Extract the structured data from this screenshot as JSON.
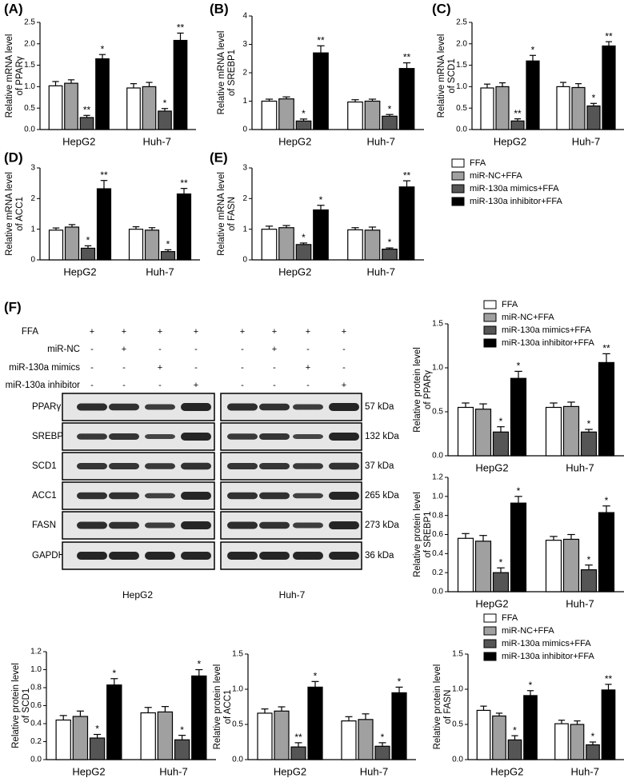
{
  "chart_data": [
    {
      "type": "bar",
      "panel": "(A)",
      "ylabel": [
        "Relative mRNA level",
        "of PPARγ"
      ],
      "categories": [
        "HepG2",
        "Huh-7"
      ],
      "ylim": [
        0,
        2.5
      ],
      "yticks": [
        {
          "value": 0,
          "label": "0.0"
        },
        0.5,
        {
          "value": 1,
          "label": "1.0"
        },
        1.5,
        {
          "value": 2,
          "label": "2.0"
        },
        2.5
      ],
      "series": [
        {
          "name": "FFA",
          "color": "#ffffff",
          "values": [
            1.02,
            0.97
          ],
          "errors": [
            0.1,
            0.1
          ],
          "annotations": [
            null,
            null
          ]
        },
        {
          "name": "miR-NC+FFA",
          "color": "#a0a0a0",
          "values": [
            1.08,
            1.0
          ],
          "errors": [
            0.08,
            0.1
          ],
          "annotations": [
            null,
            null
          ]
        },
        {
          "name": "miR-130a mimics+FFA",
          "color": "#555555",
          "values": [
            0.28,
            0.43
          ],
          "errors": [
            0.05,
            0.06
          ],
          "annotations": [
            "**",
            "*"
          ]
        },
        {
          "name": "miR-130a inhibitor+FFA",
          "color": "#000000",
          "values": [
            1.65,
            2.08
          ],
          "errors": [
            0.1,
            0.17
          ],
          "annotations": [
            "*",
            "**"
          ]
        }
      ]
    },
    {
      "type": "bar",
      "panel": "(B)",
      "ylabel": [
        "Relative mRNA level",
        "of SREBP1"
      ],
      "categories": [
        "HepG2",
        "Huh-7"
      ],
      "ylim": [
        0,
        4
      ],
      "yticks": [
        0,
        1,
        2,
        3,
        4
      ],
      "series": [
        {
          "name": "FFA",
          "color": "#ffffff",
          "values": [
            1.0,
            0.97
          ],
          "errors": [
            0.07,
            0.08
          ],
          "annotations": [
            null,
            null
          ]
        },
        {
          "name": "miR-NC+FFA",
          "color": "#a0a0a0",
          "values": [
            1.08,
            1.0
          ],
          "errors": [
            0.07,
            0.07
          ],
          "annotations": [
            null,
            null
          ]
        },
        {
          "name": "miR-130a mimics+FFA",
          "color": "#555555",
          "values": [
            0.3,
            0.47
          ],
          "errors": [
            0.07,
            0.06
          ],
          "annotations": [
            "*",
            "*"
          ]
        },
        {
          "name": "miR-130a inhibitor+FFA",
          "color": "#000000",
          "values": [
            2.7,
            2.15
          ],
          "errors": [
            0.25,
            0.2
          ],
          "annotations": [
            "**",
            "**"
          ]
        }
      ]
    },
    {
      "type": "bar",
      "panel": "(C)",
      "ylabel": [
        "Relative mRNA level",
        "of SCD1"
      ],
      "categories": [
        "HepG2",
        "Huh-7"
      ],
      "ylim": [
        0,
        2.5
      ],
      "yticks": [
        {
          "value": 0,
          "label": "0.0"
        },
        0.5,
        {
          "value": 1,
          "label": "1.0"
        },
        1.5,
        {
          "value": 2,
          "label": "2.0"
        },
        2.5
      ],
      "series": [
        {
          "name": "FFA",
          "color": "#ffffff",
          "values": [
            0.97,
            1.0
          ],
          "errors": [
            0.09,
            0.1
          ],
          "annotations": [
            null,
            null
          ]
        },
        {
          "name": "miR-NC+FFA",
          "color": "#a0a0a0",
          "values": [
            1.0,
            0.98
          ],
          "errors": [
            0.09,
            0.09
          ],
          "annotations": [
            null,
            null
          ]
        },
        {
          "name": "miR-130a mimics+FFA",
          "color": "#555555",
          "values": [
            0.2,
            0.55
          ],
          "errors": [
            0.05,
            0.06
          ],
          "annotations": [
            "**",
            "*"
          ]
        },
        {
          "name": "miR-130a inhibitor+FFA",
          "color": "#000000",
          "values": [
            1.6,
            1.95
          ],
          "errors": [
            0.13,
            0.1
          ],
          "annotations": [
            "*",
            "**"
          ]
        }
      ]
    },
    {
      "type": "bar",
      "panel": "(D)",
      "ylabel": [
        "Relative mRNA level",
        "of ACC1"
      ],
      "categories": [
        "HepG2",
        "Huh-7"
      ],
      "ylim": [
        0,
        3
      ],
      "yticks": [
        0,
        1,
        2,
        3
      ],
      "series": [
        {
          "name": "FFA",
          "color": "#ffffff",
          "values": [
            0.97,
            1.0
          ],
          "errors": [
            0.07,
            0.08
          ],
          "annotations": [
            null,
            null
          ]
        },
        {
          "name": "miR-NC+FFA",
          "color": "#a0a0a0",
          "values": [
            1.07,
            0.97
          ],
          "errors": [
            0.08,
            0.08
          ],
          "annotations": [
            null,
            null
          ]
        },
        {
          "name": "miR-130a mimics+FFA",
          "color": "#555555",
          "values": [
            0.38,
            0.27
          ],
          "errors": [
            0.08,
            0.06
          ],
          "annotations": [
            "*",
            "*"
          ]
        },
        {
          "name": "miR-130a inhibitor+FFA",
          "color": "#000000",
          "values": [
            2.32,
            2.15
          ],
          "errors": [
            0.27,
            0.18
          ],
          "annotations": [
            "**",
            "**"
          ]
        }
      ]
    },
    {
      "type": "bar",
      "panel": "(E)",
      "ylabel": [
        "Relative mRNA level",
        "of FASN"
      ],
      "categories": [
        "HepG2",
        "Huh-7"
      ],
      "ylim": [
        0,
        3
      ],
      "yticks": [
        0,
        1,
        2,
        3
      ],
      "legend": "right",
      "series": [
        {
          "name": "FFA",
          "color": "#ffffff",
          "values": [
            1.0,
            0.98
          ],
          "errors": [
            0.1,
            0.07
          ],
          "annotations": [
            null,
            null
          ]
        },
        {
          "name": "miR-NC+FFA",
          "color": "#a0a0a0",
          "values": [
            1.05,
            0.97
          ],
          "errors": [
            0.07,
            0.1
          ],
          "annotations": [
            null,
            null
          ]
        },
        {
          "name": "miR-130a mimics+FFA",
          "color": "#555555",
          "values": [
            0.5,
            0.35
          ],
          "errors": [
            0.05,
            0.04
          ],
          "annotations": [
            "*",
            "*"
          ]
        },
        {
          "name": "miR-130a inhibitor+FFA",
          "color": "#000000",
          "values": [
            1.63,
            2.38
          ],
          "errors": [
            0.15,
            0.2
          ],
          "annotations": [
            "*",
            "**"
          ]
        }
      ]
    },
    {
      "type": "bar",
      "ylabel": [
        "Relative protein level",
        "of PPARγ"
      ],
      "categories": [
        "HepG2",
        "Huh-7"
      ],
      "ylim": [
        0,
        1.5
      ],
      "yticks": [
        {
          "value": 0,
          "label": "0.0"
        },
        0.5,
        {
          "value": 1,
          "label": "1.0"
        },
        1.5
      ],
      "legend": "top",
      "series": [
        {
          "name": "FFA",
          "color": "#ffffff",
          "values": [
            0.55,
            0.55
          ],
          "errors": [
            0.05,
            0.05
          ],
          "annotations": [
            null,
            null
          ]
        },
        {
          "name": "miR-NC+FFA",
          "color": "#a0a0a0",
          "values": [
            0.53,
            0.56
          ],
          "errors": [
            0.06,
            0.05
          ],
          "annotations": [
            null,
            null
          ]
        },
        {
          "name": "miR-130a mimics+FFA",
          "color": "#555555",
          "values": [
            0.27,
            0.27
          ],
          "errors": [
            0.06,
            0.03
          ],
          "annotations": [
            "*",
            "*"
          ]
        },
        {
          "name": "miR-130a inhibitor+FFA",
          "color": "#000000",
          "values": [
            0.88,
            1.06
          ],
          "errors": [
            0.08,
            0.1
          ],
          "annotations": [
            "*",
            "**"
          ]
        }
      ]
    },
    {
      "type": "bar",
      "ylabel": [
        "Relative protein level",
        "of SREBP1"
      ],
      "categories": [
        "HepG2",
        "Huh-7"
      ],
      "ylim": [
        0,
        1.2
      ],
      "yticks": [
        {
          "value": 0,
          "label": "0.0"
        },
        0.2,
        0.4,
        0.6,
        0.8,
        {
          "value": 1,
          "label": "1.0"
        },
        1.2
      ],
      "series": [
        {
          "name": "FFA",
          "color": "#ffffff",
          "values": [
            0.56,
            0.54
          ],
          "errors": [
            0.05,
            0.04
          ],
          "annotations": [
            null,
            null
          ]
        },
        {
          "name": "miR-NC+FFA",
          "color": "#a0a0a0",
          "values": [
            0.53,
            0.55
          ],
          "errors": [
            0.06,
            0.05
          ],
          "annotations": [
            null,
            null
          ]
        },
        {
          "name": "miR-130a mimics+FFA",
          "color": "#555555",
          "values": [
            0.2,
            0.23
          ],
          "errors": [
            0.05,
            0.05
          ],
          "annotations": [
            "*",
            "*"
          ]
        },
        {
          "name": "miR-130a inhibitor+FFA",
          "color": "#000000",
          "values": [
            0.93,
            0.83
          ],
          "errors": [
            0.07,
            0.07
          ],
          "annotations": [
            "*",
            "*"
          ]
        }
      ]
    },
    {
      "type": "bar",
      "ylabel": [
        "Relative protein level",
        "of SCD1"
      ],
      "categories": [
        "HepG2",
        "Huh-7"
      ],
      "ylim": [
        0,
        1.2
      ],
      "yticks": [
        {
          "value": 0,
          "label": "0.0"
        },
        0.2,
        0.4,
        0.6,
        0.8,
        {
          "value": 1,
          "label": "1.0"
        },
        1.2
      ],
      "series": [
        {
          "name": "FFA",
          "color": "#ffffff",
          "values": [
            0.44,
            0.52
          ],
          "errors": [
            0.05,
            0.06
          ],
          "annotations": [
            null,
            null
          ]
        },
        {
          "name": "miR-NC+FFA",
          "color": "#a0a0a0",
          "values": [
            0.48,
            0.53
          ],
          "errors": [
            0.06,
            0.06
          ],
          "annotations": [
            null,
            null
          ]
        },
        {
          "name": "miR-130a mimics+FFA",
          "color": "#555555",
          "values": [
            0.24,
            0.22
          ],
          "errors": [
            0.04,
            0.05
          ],
          "annotations": [
            "*",
            "*"
          ]
        },
        {
          "name": "miR-130a inhibitor+FFA",
          "color": "#000000",
          "values": [
            0.83,
            0.93
          ],
          "errors": [
            0.07,
            0.07
          ],
          "annotations": [
            "*",
            "*"
          ]
        }
      ]
    },
    {
      "type": "bar",
      "ylabel": [
        "Relative protein level",
        "of ACC1"
      ],
      "categories": [
        "HepG2",
        "Huh-7"
      ],
      "ylim": [
        0,
        1.5
      ],
      "yticks": [
        {
          "value": 0,
          "label": "0.0"
        },
        0.5,
        {
          "value": 1,
          "label": "1.0"
        },
        1.5
      ],
      "series": [
        {
          "name": "FFA",
          "color": "#ffffff",
          "values": [
            0.66,
            0.55
          ],
          "errors": [
            0.06,
            0.06
          ],
          "annotations": [
            null,
            null
          ]
        },
        {
          "name": "miR-NC+FFA",
          "color": "#a0a0a0",
          "values": [
            0.69,
            0.57
          ],
          "errors": [
            0.06,
            0.08
          ],
          "annotations": [
            null,
            null
          ]
        },
        {
          "name": "miR-130a mimics+FFA",
          "color": "#555555",
          "values": [
            0.18,
            0.19
          ],
          "errors": [
            0.06,
            0.05
          ],
          "annotations": [
            "**",
            "*"
          ]
        },
        {
          "name": "miR-130a inhibitor+FFA",
          "color": "#000000",
          "values": [
            1.03,
            0.95
          ],
          "errors": [
            0.08,
            0.08
          ],
          "annotations": [
            "*",
            "*"
          ]
        }
      ]
    },
    {
      "type": "bar",
      "ylabel": [
        "Relative protein level",
        "of FASN"
      ],
      "categories": [
        "HepG2",
        "Huh-7"
      ],
      "ylim": [
        0,
        1.5
      ],
      "yticks": [
        {
          "value": 0,
          "label": "0.0"
        },
        0.5,
        {
          "value": 1,
          "label": "1.0"
        },
        1.5
      ],
      "legend": "top",
      "series": [
        {
          "name": "FFA",
          "color": "#ffffff",
          "values": [
            0.7,
            0.51
          ],
          "errors": [
            0.06,
            0.05
          ],
          "annotations": [
            null,
            null
          ]
        },
        {
          "name": "miR-NC+FFA",
          "color": "#a0a0a0",
          "values": [
            0.62,
            0.5
          ],
          "errors": [
            0.04,
            0.05
          ],
          "annotations": [
            null,
            null
          ]
        },
        {
          "name": "miR-130a mimics+FFA",
          "color": "#555555",
          "values": [
            0.28,
            0.21
          ],
          "errors": [
            0.06,
            0.04
          ],
          "annotations": [
            "*",
            "*"
          ]
        },
        {
          "name": "miR-130a inhibitor+FFA",
          "color": "#000000",
          "values": [
            0.91,
            0.99
          ],
          "errors": [
            0.07,
            0.08
          ],
          "annotations": [
            "*",
            "**"
          ]
        }
      ]
    }
  ],
  "blot": {
    "panel": "(F)",
    "conditions": [
      {
        "label": "FFA",
        "signs": [
          "+",
          "+",
          "+",
          "+",
          "+",
          "+",
          "+",
          "+"
        ]
      },
      {
        "label": "miR-NC",
        "signs": [
          "-",
          "+",
          "-",
          "-",
          "-",
          "+",
          "-",
          "-"
        ]
      },
      {
        "label": "miR-130a mimics",
        "signs": [
          "-",
          "-",
          "+",
          "-",
          "-",
          "-",
          "+",
          "-"
        ]
      },
      {
        "label": "miR-130a inhibitor",
        "signs": [
          "-",
          "-",
          "-",
          "+",
          "-",
          "-",
          "-",
          "+"
        ]
      }
    ],
    "proteins": [
      {
        "name": "PPARγ",
        "size": "57 kDa"
      },
      {
        "name": "SREBP1",
        "size": "132 kDa"
      },
      {
        "name": "SCD1",
        "size": "37 kDa"
      },
      {
        "name": "ACC1",
        "size": "265 kDa"
      },
      {
        "name": "FASN",
        "size": "273 kDa"
      },
      {
        "name": "GAPDH",
        "size": "36 kDa"
      }
    ],
    "cell_lines": [
      "HepG2",
      "Huh-7"
    ]
  }
}
